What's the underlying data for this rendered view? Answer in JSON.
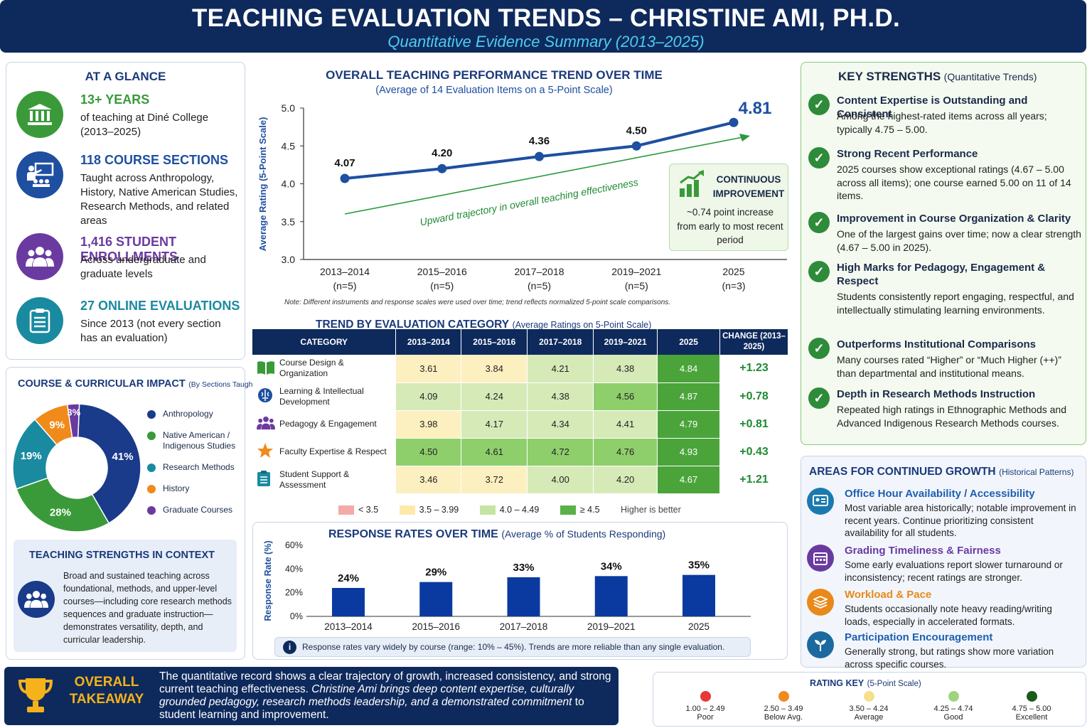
{
  "header": {
    "title": "TEACHING EVALUATION TRENDS – CHRISTINE AMI, PH.D.",
    "subtitle": "Quantitative Evidence Summary (2013–2025)"
  },
  "glance": {
    "title": "AT A GLANCE",
    "items": [
      {
        "heading": "13+ YEARS",
        "text": "of teaching at Diné College (2013–2025)",
        "color": "#3a9a3a",
        "icon": "institution-icon"
      },
      {
        "heading": "118 COURSE SECTIONS",
        "text": "Taught across Anthropology, History, Native American Studies, Research Methods, and related areas",
        "color": "#1e4fa0",
        "icon": "teacher-icon"
      },
      {
        "heading": "1,416 STUDENT ENROLLMENTS",
        "text": "Across undergraduate and graduate levels",
        "color": "#6a3aa0",
        "icon": "students-icon"
      },
      {
        "heading": "27 ONLINE EVALUATIONS",
        "text": "Since 2013 (not every section has an evaluation)",
        "color": "#1a8aa0",
        "icon": "clipboard-icon"
      }
    ]
  },
  "impact": {
    "title": "COURSE & CURRICULAR IMPACT",
    "title_note": "(By Sections Taught)"
  },
  "context": {
    "title": "TEACHING STRENGTHS IN CONTEXT",
    "text": "Broad and sustained teaching across foundational, methods, and upper-level courses—including core research methods sequences and graduate instruction—demonstrates versatility, depth, and curricular leadership."
  },
  "trend": {
    "title": "OVERALL TEACHING PERFORMANCE TREND OVER TIME",
    "subtitle": "(Average of 14 Evaluation Items on a 5-Point Scale)",
    "arrow_label": "Upward trajectory in overall teaching effectiveness",
    "note": "Note: Different instruments and response scales were used over time; trend reflects normalized 5-point scale comparisons.",
    "callout_title_1": "CONTINUOUS",
    "callout_title_2": "IMPROVEMENT",
    "callout_text": "~0.74 point increase from early to most recent period"
  },
  "category_table": {
    "title": "TREND BY EVALUATION CATEGORY",
    "title_note": "(Average Ratings on 5-Point Scale)",
    "headers": [
      "CATEGORY",
      "2013–2014",
      "2015–2016",
      "2017–2018",
      "2019–2021",
      "2025",
      "CHANGE (2013–2025)"
    ],
    "legend": [
      "< 3.5",
      "3.5 – 3.99",
      "4.0 – 4.49",
      "≥ 4.5",
      "Higher is better"
    ]
  },
  "response": {
    "title": "RESPONSE RATES OVER TIME",
    "title_note": "(Average % of Students Responding)",
    "note": "Response rates vary widely by course (range: 10% – 45%). Trends are more reliable than any single evaluation."
  },
  "strengths": {
    "title": "KEY STRENGTHS",
    "title_note": "(Quantitative Trends)",
    "items": [
      {
        "heading": "Content Expertise is Outstanding and Consistent",
        "text": "Among the highest-rated items across all years; typically 4.75 – 5.00."
      },
      {
        "heading": "Strong Recent Performance",
        "text": "2025 courses show exceptional ratings (4.67 – 5.00 across all items); one course earned 5.00 on 11 of 14 items."
      },
      {
        "heading": "Improvement in Course Organization & Clarity",
        "text": "One of the largest gains over time; now a clear strength (4.67 – 5.00 in 2025)."
      },
      {
        "heading": "High Marks for Pedagogy, Engagement & Respect",
        "text": "Students consistently report engaging, respectful, and intellectually stimulating learning environments."
      },
      {
        "heading": "Outperforms Institutional Comparisons",
        "text": "Many courses rated “Higher” or “Much Higher (++)” than departmental and institutional means."
      },
      {
        "heading": "Depth in Research Methods Instruction",
        "text": "Repeated high ratings in Ethnographic Methods and Advanced Indigenous Research Methods courses."
      }
    ]
  },
  "growth": {
    "title": "AREAS FOR CONTINUED GROWTH",
    "title_note": "(Historical Patterns)",
    "items": [
      {
        "heading": "Office Hour Availability / Accessibility",
        "text": "Most variable area historically; notable improvement in recent years. Continue prioritizing consistent availability for all students.",
        "color": "#1e5fb0",
        "icon": "office-icon"
      },
      {
        "heading": "Grading Timeliness & Fairness",
        "text": "Some early evaluations report slower turnaround or inconsistency; recent ratings are stronger.",
        "color": "#6a3aa0",
        "icon": "calendar-icon"
      },
      {
        "heading": "Workload & Pace",
        "text": "Students occasionally note heavy reading/writing loads, especially in accelerated formats.",
        "color": "#e8891a",
        "icon": "layers-icon"
      },
      {
        "heading": "Participation Encouragement",
        "text": "Generally strong, but ratings show more variation across specific courses.",
        "color": "#1a6aa0",
        "icon": "sprout-icon"
      }
    ]
  },
  "takeaway": {
    "label_1": "OVERALL",
    "label_2": "TAKEAWAY",
    "text_1": "The quantitative record shows a clear trajectory of growth, increased consistency, and strong current teaching effectiveness. ",
    "text_2": "Christine Ami brings deep content expertise, culturally grounded pedagogy, research methods leadership, and a demonstrated commitment",
    "text_3": " to student learning and improvement."
  },
  "rating_key": {
    "title": "RATING KEY",
    "title_note": "(5-Point Scale)",
    "items": [
      {
        "range": "1.00 – 2.49",
        "label": "Poor",
        "color": "#e53935"
      },
      {
        "range": "2.50 – 3.49",
        "label": "Below Avg.",
        "color": "#f08a1a"
      },
      {
        "range": "3.50 – 4.24",
        "label": "Average",
        "color": "#f6e08a"
      },
      {
        "range": "4.25 – 4.74",
        "label": "Good",
        "color": "#9ed47e"
      },
      {
        "range": "4.75 – 5.00",
        "label": "Excellent",
        "color": "#1a5a1a"
      }
    ]
  },
  "chart_data": [
    {
      "type": "line",
      "title": "OVERALL TEACHING PERFORMANCE TREND OVER TIME",
      "ylabel": "Average Rating (5-Point Scale)",
      "ylim": [
        3.0,
        5.0
      ],
      "yticks": [
        "5.0",
        "4.5",
        "4.0",
        "3.5",
        "3.0"
      ],
      "categories": [
        "2013–2014",
        "2015–2016",
        "2017–2018",
        "2019–2021",
        "2025"
      ],
      "n_labels": [
        "(n=5)",
        "(n=5)",
        "(n=5)",
        "(n=5)",
        "(n=3)"
      ],
      "values": [
        4.07,
        4.2,
        4.36,
        4.5,
        4.81
      ],
      "value_labels": [
        "4.07",
        "4.20",
        "4.36",
        "4.50",
        "4.81"
      ],
      "color": "#1e4fa0"
    },
    {
      "type": "table",
      "title": "TREND BY EVALUATION CATEGORY",
      "rows": [
        {
          "category": "Course Design & Organization",
          "icon": "book-icon",
          "values": [
            "3.61",
            "3.84",
            "4.21",
            "4.38",
            "4.84"
          ],
          "change": "+1.23"
        },
        {
          "category": "Learning & Intellectual Development",
          "icon": "brain-icon",
          "values": [
            "4.09",
            "4.24",
            "4.38",
            "4.56",
            "4.87"
          ],
          "change": "+0.78"
        },
        {
          "category": "Pedagogy & Engagement",
          "icon": "group-icon",
          "values": [
            "3.98",
            "4.17",
            "4.34",
            "4.41",
            "4.79"
          ],
          "change": "+0.81"
        },
        {
          "category": "Faculty Expertise & Respect",
          "icon": "star-icon",
          "values": [
            "4.50",
            "4.61",
            "4.72",
            "4.76",
            "4.93"
          ],
          "change": "+0.43"
        },
        {
          "category": "Student Support & Assessment",
          "icon": "clipboard-icon",
          "values": [
            "3.46",
            "3.72",
            "4.00",
            "4.20",
            "4.67"
          ],
          "change": "+1.21"
        }
      ]
    },
    {
      "type": "pie",
      "title": "COURSE & CURRICULAR IMPACT",
      "labels": [
        "Anthropology",
        "Native American / Indigenous Studies",
        "Research Methods",
        "History",
        "Graduate Courses"
      ],
      "values": [
        41,
        28,
        19,
        9,
        3
      ],
      "value_labels": [
        "41%",
        "28%",
        "19%",
        "9%",
        "3%"
      ],
      "colors": [
        "#1a3a8a",
        "#3a9a3a",
        "#1a8aa0",
        "#f08a1a",
        "#6a3aa0"
      ]
    },
    {
      "type": "bar",
      "title": "RESPONSE RATES OVER TIME",
      "ylabel": "Response Rate (%)",
      "ylim": [
        0,
        60
      ],
      "yticks": [
        "60%",
        "40%",
        "20%",
        "0%"
      ],
      "categories": [
        "2013–2014",
        "2015–2016",
        "2017–2018",
        "2019–2021",
        "2025"
      ],
      "values": [
        24,
        29,
        33,
        34,
        35
      ],
      "value_labels": [
        "24%",
        "29%",
        "33%",
        "34%",
        "35%"
      ],
      "color": "#0a3aa0"
    }
  ]
}
